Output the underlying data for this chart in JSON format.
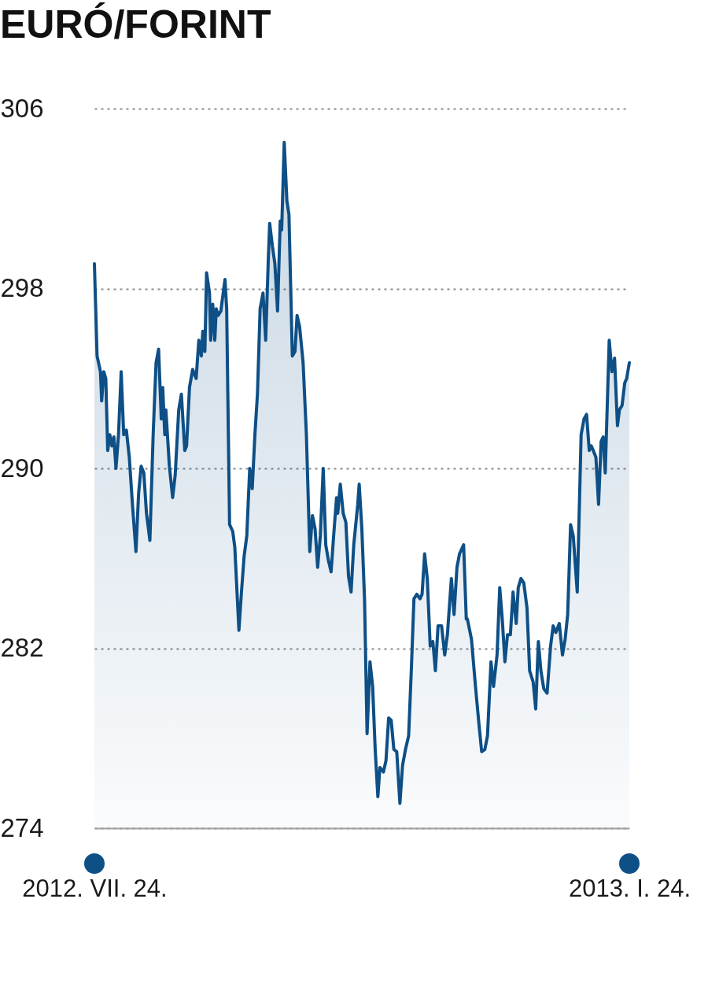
{
  "chart_data": {
    "type": "area",
    "title": "EURÓ/FORINT",
    "x": [
      "2012-07-24T00:00",
      "2012-07-24T22:00",
      "2012-07-26T02:00",
      "2012-07-26T12:00",
      "2012-07-27T05:00",
      "2012-07-27T22:00",
      "2012-07-28T14:00",
      "2012-07-29T07:00",
      "2012-07-30T00:00",
      "2012-07-30T17:00",
      "2012-07-31T10:00",
      "2012-08-01T07:00",
      "2012-08-02T05:00",
      "2012-08-03T02:00",
      "2012-08-04T00:00",
      "2012-08-05T00:00",
      "2012-08-06T02:00",
      "2012-08-07T07:00",
      "2012-08-08T05:00",
      "2012-08-09T02:00",
      "2012-08-10T00:00",
      "2012-08-10T22:00",
      "2012-08-12T02:00",
      "2012-08-13T05:00",
      "2012-08-14T05:00",
      "2012-08-15T02:00",
      "2012-08-16T00:00",
      "2012-08-16T12:00",
      "2012-08-17T05:00",
      "2012-08-17T14:00",
      "2012-08-18T19:00",
      "2012-08-19T22:00",
      "2012-08-20T19:00",
      "2012-08-22T00:00",
      "2012-08-22T22:00",
      "2012-08-24T02:00",
      "2012-08-24T17:00",
      "2012-08-25T17:00",
      "2012-08-26T19:00",
      "2012-08-28T00:00",
      "2012-08-28T22:00",
      "2012-08-29T19:00",
      "2012-08-30T07:00",
      "2012-08-31T00:00",
      "2012-08-31T14:00",
      "2012-09-01T14:00",
      "2012-09-02T00:00",
      "2012-09-02T17:00",
      "2012-09-03T10:00",
      "2012-09-03T22:00",
      "2012-09-04T14:00",
      "2012-09-05T12:00",
      "2012-09-06T22:00",
      "2012-09-07T12:00",
      "2012-09-08T12:00",
      "2012-09-09T14:00",
      "2012-09-10T07:00",
      "2012-09-11T17:00",
      "2012-09-12T14:00",
      "2012-09-13T12:00",
      "2012-09-14T10:00",
      "2012-09-15T10:00",
      "2012-09-16T07:00",
      "2012-09-17T05:00",
      "2012-09-18T02:00",
      "2012-09-19T00:00",
      "2012-09-20T00:00",
      "2012-09-20T22:00",
      "2012-09-21T19:00",
      "2012-09-22T07:00",
      "2012-09-23T05:00",
      "2012-09-24T02:00",
      "2012-09-25T00:00",
      "2012-09-25T22:00",
      "2012-09-26T10:00",
      "2012-09-27T07:00",
      "2012-09-28T05:00",
      "2012-09-28T22:00",
      "2012-09-30T02:00",
      "2012-10-01T00:00",
      "2012-10-01T17:00",
      "2012-10-02T14:00",
      "2012-10-03T19:00",
      "2012-10-04T22:00",
      "2012-10-06T02:00",
      "2012-10-07T00:00",
      "2012-10-07T22:00",
      "2012-10-08T19:00",
      "2012-10-09T17:00",
      "2012-10-10T17:00",
      "2012-10-11T14:00",
      "2012-10-12T12:00",
      "2012-10-13T10:00",
      "2012-10-14T07:00",
      "2012-10-15T07:00",
      "2012-10-15T17:00",
      "2012-10-16T14:00",
      "2012-10-17T14:00",
      "2012-10-18T12:00",
      "2012-10-19T10:00",
      "2012-10-20T07:00",
      "2012-10-21T05:00",
      "2012-10-22T14:00",
      "2012-10-23T02:00",
      "2012-10-24T00:00",
      "2012-10-24T22:00",
      "2012-10-25T19:00",
      "2012-10-26T19:00",
      "2012-10-27T17:00",
      "2012-10-28T14:00",
      "2012-10-29T12:00",
      "2012-10-30T05:00",
      "2012-10-31T10:00",
      "2012-11-01T07:00",
      "2012-11-02T05:00",
      "2012-11-03T02:00",
      "2012-11-04T00:00",
      "2012-11-05T00:00",
      "2012-11-06T02:00",
      "2012-11-07T00:00",
      "2012-11-08T00:00",
      "2012-11-09T02:00",
      "2012-11-10T00:00",
      "2012-11-10T22:00",
      "2012-11-11T22:00",
      "2012-11-13T00:00",
      "2012-11-13T17:00",
      "2012-11-14T14:00",
      "2012-11-15T12:00",
      "2012-11-16T12:00",
      "2012-11-17T10:00",
      "2012-11-18T07:00",
      "2012-11-19T05:00",
      "2012-11-20T10:00",
      "2012-11-21T12:00",
      "2012-11-22T10:00",
      "2012-11-23T19:00",
      "2012-11-24T17:00",
      "2012-11-25T17:00",
      "2012-11-26T14:00",
      "2012-11-28T00:00",
      "2012-11-28T22:00",
      "2012-11-29T07:00",
      "2012-11-30T17:00",
      "2012-12-02T02:00",
      "2012-12-03T07:00",
      "2012-12-04T05:00",
      "2012-12-05T07:00",
      "2012-12-06T05:00",
      "2012-12-07T10:00",
      "2012-12-08T07:00",
      "2012-12-09T12:00",
      "2012-12-10T10:00",
      "2012-12-11T07:00",
      "2012-12-12T05:00",
      "2012-12-13T02:00",
      "2012-12-14T02:00",
      "2012-12-15T00:00",
      "2012-12-16T02:00",
      "2012-12-16T19:00",
      "2012-12-17T17:00",
      "2012-12-18T17:00",
      "2012-12-19T19:00",
      "2012-12-20T17:00",
      "2012-12-21T22:00",
      "2012-12-22T19:00",
      "2012-12-23T17:00",
      "2012-12-24T14:00",
      "2012-12-25T14:00",
      "2012-12-26T17:00",
      "2012-12-27T22:00",
      "2012-12-28T19:00",
      "2012-12-29T17:00",
      "2012-12-30T22:00",
      "2013-01-01T00:00",
      "2013-01-01T22:00",
      "2013-01-02T19:00",
      "2013-01-03T19:00",
      "2013-01-04T17:00",
      "2013-01-06T02:00",
      "2013-01-07T10:00",
      "2013-01-08T10:00",
      "2013-01-09T07:00",
      "2013-01-10T05:00",
      "2013-01-10T22:00",
      "2013-01-11T14:00",
      "2013-01-12T12:00",
      "2013-01-13T10:00",
      "2013-01-14T07:00",
      "2013-01-15T00:00",
      "2013-01-15T17:00",
      "2013-01-17T02:00",
      "2013-01-18T00:00",
      "2013-01-18T22:00",
      "2013-01-19T22:00",
      "2013-01-20T14:00",
      "2013-01-21T12:00",
      "2013-01-22T10:00",
      "2013-01-23T02:00",
      "2013-01-24T00:00"
    ],
    "series": [
      {
        "color": "#0e4f86",
        "values": [
          299.1,
          295.0,
          294.3,
          293.0,
          294.3,
          294.0,
          290.8,
          291.5,
          291.0,
          291.4,
          290.0,
          291.5,
          294.3,
          291.5,
          291.7,
          290.5,
          288.4,
          286.3,
          288.9,
          290.1,
          289.8,
          288.0,
          286.8,
          291.5,
          294.7,
          295.3,
          292.2,
          293.6,
          291.5,
          292.6,
          290.1,
          288.7,
          289.7,
          292.6,
          293.3,
          290.8,
          291.0,
          293.6,
          294.4,
          294.0,
          295.7,
          295.0,
          296.1,
          295.2,
          298.7,
          297.8,
          295.7,
          297.3,
          295.7,
          297.1,
          296.8,
          297.0,
          298.4,
          297.1,
          287.5,
          287.2,
          286.5,
          282.8,
          284.5,
          286.1,
          287.0,
          290.0,
          289.1,
          291.5,
          293.3,
          297.1,
          297.8,
          295.7,
          299.2,
          300.9,
          299.9,
          299.1,
          297.0,
          301.0,
          300.6,
          304.5,
          301.9,
          301.3,
          295.0,
          295.2,
          296.8,
          296.3,
          294.7,
          291.5,
          286.3,
          287.9,
          287.3,
          285.6,
          287.0,
          290.0,
          286.6,
          285.9,
          285.4,
          287.0,
          288.7,
          288.0,
          289.3,
          288.0,
          287.6,
          285.2,
          284.5,
          286.6,
          288.4,
          289.3,
          287.3,
          284.2,
          278.2,
          281.4,
          280.3,
          277.5,
          275.4,
          276.7,
          276.5,
          277.0,
          278.9,
          278.8,
          277.5,
          277.4,
          275.1,
          276.8,
          277.5,
          278.1,
          281.0,
          284.2,
          284.4,
          284.2,
          284.4,
          286.2,
          285.1,
          282.1,
          282.3,
          281.0,
          283.0,
          283.0,
          281.7,
          282.6,
          285.1,
          283.5,
          285.6,
          286.2,
          286.6,
          283.3,
          283.3,
          282.4,
          280.3,
          278.6,
          277.4,
          277.5,
          278.1,
          281.4,
          280.3,
          281.7,
          284.7,
          283.3,
          281.4,
          282.6,
          282.6,
          284.5,
          283.1,
          284.7,
          285.1,
          284.9,
          283.8,
          281.0,
          280.5,
          279.3,
          282.3,
          281.0,
          280.2,
          280.0,
          282.1,
          283.0,
          282.7,
          283.1,
          281.7,
          282.4,
          283.5,
          287.5,
          287.0,
          284.5,
          291.5,
          292.2,
          292.4,
          290.8,
          291.0,
          290.8,
          290.5,
          288.4,
          291.2,
          291.4,
          289.8,
          295.7,
          294.3,
          294.9,
          291.9,
          292.6,
          292.8,
          293.8,
          294.0,
          294.7
        ]
      }
    ],
    "xlim": [
      "2012-07-24",
      "2013-01-24"
    ],
    "xticks": [
      {
        "value": "2012-07-24",
        "label": "2012. VII. 24."
      },
      {
        "value": "2013-01-24",
        "label": "2013. I. 24."
      }
    ],
    "ylim": [
      274,
      306
    ],
    "yticks": [
      274,
      282,
      290,
      298,
      306
    ],
    "grid": "y"
  }
}
